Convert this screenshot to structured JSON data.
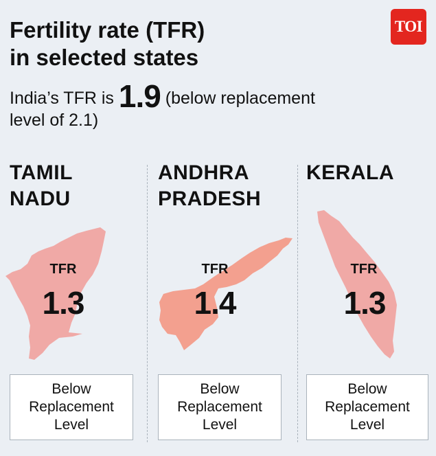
{
  "header": {
    "title_line1": "Fertility rate (TFR)",
    "title_line2": "in selected states",
    "logo": "TOI",
    "subtitle_pre": "India’s TFR is ",
    "subtitle_value": "1.9",
    "subtitle_post": " (below replacement level of 2.1)"
  },
  "colors": {
    "background": "#ebeff4",
    "map_fill": "#f0a9a6",
    "andhra_fill": "#f3a08f",
    "logo_red": "#e3261f"
  },
  "chart_data": {
    "type": "table",
    "title": "Fertility rate (TFR) in selected states",
    "national": {
      "label": "India’s TFR",
      "value": 1.9,
      "replacement_level": 2.1
    },
    "states": [
      {
        "name_line1": "TAMIL",
        "name_line2": "NADU",
        "tfr_label": "TFR",
        "tfr": "1.3",
        "status": "Below Replacement Level"
      },
      {
        "name_line1": "ANDHRA",
        "name_line2": "PRADESH",
        "tfr_label": "TFR",
        "tfr": "1.4",
        "status": "Below Replacement Level"
      },
      {
        "name_line1": "KERALA",
        "name_line2": "",
        "tfr_label": "TFR",
        "tfr": "1.3",
        "status": "Below Replacement Level"
      }
    ]
  }
}
